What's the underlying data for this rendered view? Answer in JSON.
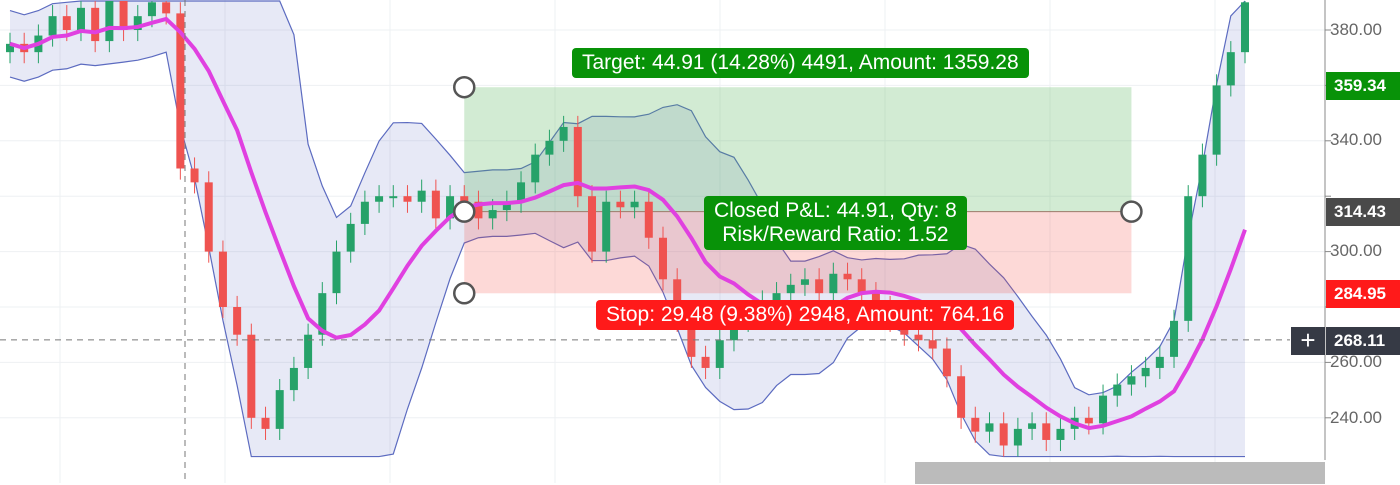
{
  "chart_data": {
    "type": "candlestick",
    "y_ticks": [
      380,
      360,
      340,
      320,
      300,
      280,
      260,
      240
    ],
    "ylim": [
      225,
      392
    ],
    "grid": true,
    "closes": [
      375,
      372,
      378,
      385,
      380,
      388,
      376,
      392,
      380,
      385,
      390,
      386,
      330,
      325,
      300,
      280,
      270,
      240,
      236,
      250,
      258,
      270,
      285,
      300,
      310,
      318,
      320,
      320,
      318,
      322,
      312,
      320,
      318,
      312,
      315,
      318,
      325,
      335,
      340,
      345,
      320,
      300,
      318,
      316,
      318,
      305,
      290,
      275,
      262,
      258,
      268,
      275,
      278,
      282,
      285,
      288,
      290,
      285,
      292,
      290,
      285,
      280,
      275,
      270,
      268,
      265,
      255,
      240,
      235,
      238,
      230,
      236,
      238,
      232,
      236,
      240,
      238,
      248,
      252,
      255,
      258,
      262,
      275,
      320,
      335,
      360,
      372,
      390
    ],
    "position": {
      "entry": 314.43,
      "target": 359.34,
      "stop": 284.95,
      "start_index": 32,
      "end_index": 79
    },
    "crosshair_price": 268.11,
    "colors": {
      "up": "#26a269",
      "down": "#ef5350",
      "ma": "#e040e0",
      "band": "#5c6bc0",
      "target": "#089208",
      "stop": "#ff1a1a"
    }
  },
  "labels": {
    "target": "Target: 44.91 (14.28%) 4491, Amount: 1359.28",
    "closed_line1": "Closed P&L: 44.91, Qty: 8",
    "closed_line2": "Risk/Reward Ratio: 1.52",
    "stop": "Stop: 29.48 (9.38%) 2948, Amount: 764.16"
  },
  "axis_tags": {
    "target": "359.34",
    "entry": "314.43",
    "stop": "284.95",
    "crosshair": "268.11"
  },
  "axis_labels": [
    "380.00",
    "340.00",
    "300.00",
    "260.00",
    "240.00"
  ]
}
